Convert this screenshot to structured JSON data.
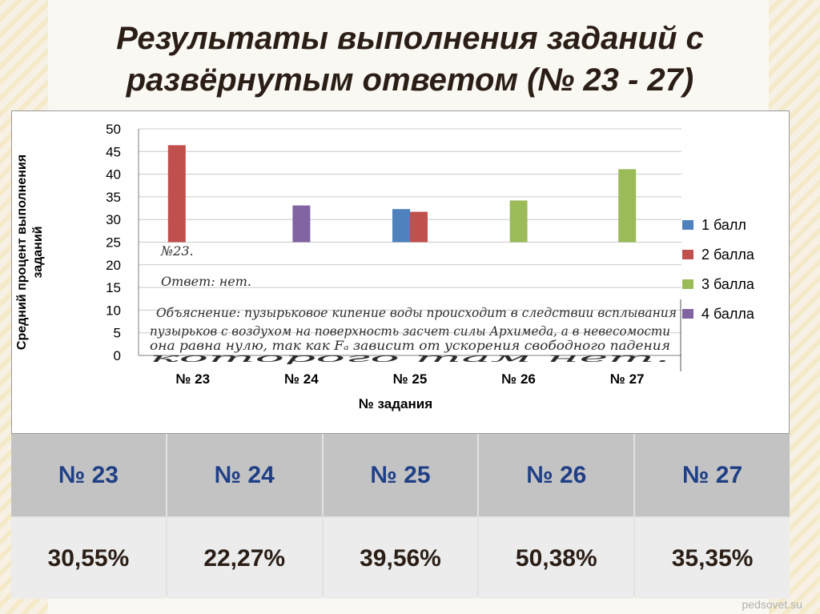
{
  "slide": {
    "title": "Результаты выполнения заданий с развёрнутым ответом (№ 23 - 27)",
    "footer": "pedsovet.su"
  },
  "chart_data": {
    "type": "bar",
    "categories": [
      "№ 23",
      "№ 24",
      "№ 25",
      "№ 26",
      "№ 27"
    ],
    "xlabel": "№ задания",
    "ylabel": "Средний процент выполнения заданий",
    "ylim": [
      0,
      50
    ],
    "yticks": [
      0,
      5,
      10,
      15,
      20,
      25,
      30,
      35,
      40,
      45,
      50
    ],
    "grid": true,
    "legend_position": "right",
    "series": [
      {
        "name": "1 балл",
        "color": "#4f81bd",
        "values": [
          null,
          null,
          32.3,
          null,
          null
        ]
      },
      {
        "name": "2 балла",
        "color": "#c0504d",
        "values": [
          46.4,
          null,
          31.7,
          null,
          null
        ]
      },
      {
        "name": "3 балла",
        "color": "#9bbb59",
        "values": [
          null,
          null,
          null,
          34.2,
          41.1
        ]
      },
      {
        "name": "4 балла",
        "color": "#8064a2",
        "values": [
          null,
          33.1,
          null,
          null,
          null
        ]
      }
    ]
  },
  "handwriting": {
    "lines": [
      "№23.",
      "Ответ: нет.",
      "Объяснение: пузырьковое кипение воды происходит в следствии всплывания",
      "пузырьков с воздухом на поверхность засчет силы Архимеда, а в невесомости",
      "она равна нулю, так как Fₐ зависит от ускорения свободного падения",
      "которого там нет."
    ]
  },
  "table": {
    "headers": [
      "№ 23",
      "№ 24",
      "№ 25",
      "№ 26",
      "№ 27"
    ],
    "values": [
      "30,55%",
      "22,27%",
      "39,56%",
      "50,38%",
      "35,35%"
    ]
  },
  "colors": {
    "title": "#2a1e16",
    "header_text": "#1f3f86",
    "header_bg": "#c3c3c3",
    "value_bg": "#ececec"
  }
}
